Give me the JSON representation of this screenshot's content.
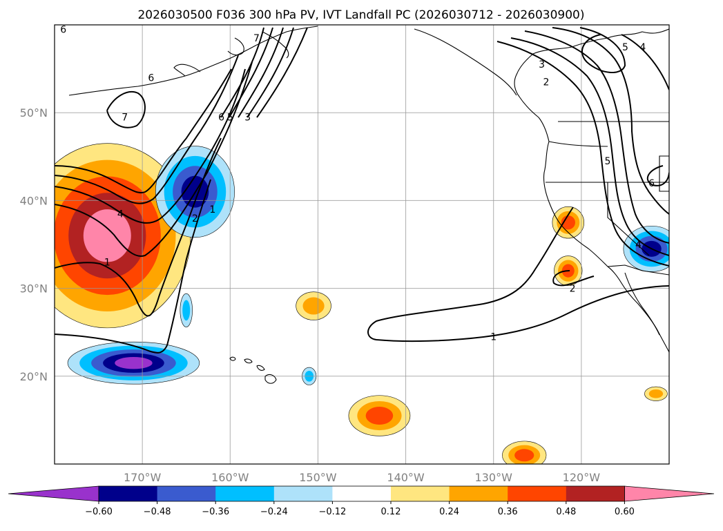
{
  "title": "2026030500 F036 300 hPa PV, IVT Landfall PC (2026030712 - 2026030900)",
  "chart_data": {
    "type": "contourf_map",
    "title": "2026030500 F036 300 hPa PV, IVT Landfall PC (2026030712 - 2026030900)",
    "projection": "PlateCarree",
    "lon_range": [
      -180,
      -110
    ],
    "lat_range": [
      10,
      60
    ],
    "lon_ticks": [
      -170,
      -160,
      -150,
      -140,
      -130,
      -120
    ],
    "lon_tick_labels": [
      "170°W",
      "160°W",
      "150°W",
      "140°W",
      "130°W",
      "120°W"
    ],
    "lat_ticks": [
      20,
      30,
      40,
      50
    ],
    "lat_tick_labels": [
      "20°N",
      "30°N",
      "40°N",
      "50°N"
    ],
    "gridlines": true,
    "colorbar": {
      "orientation": "horizontal",
      "extend": "both",
      "levels": [
        -0.6,
        -0.48,
        -0.36,
        -0.24,
        -0.12,
        0.12,
        0.24,
        0.36,
        0.48,
        0.6
      ],
      "tick_labels": [
        "−0.60",
        "−0.48",
        "−0.36",
        "−0.24",
        "−0.12",
        "0.12",
        "0.24",
        "0.36",
        "0.48",
        "0.60"
      ],
      "colors": [
        "#9932cc",
        "#00008b",
        "#3a5bcf",
        "#00bfff",
        "#aee2fa",
        "#ffffff",
        "#ffe680",
        "#ffa500",
        "#ff4500",
        "#b22222",
        "#ff85a9"
      ]
    },
    "filled_regions": [
      {
        "sign": "positive",
        "center_lon": -174,
        "center_lat": 36,
        "max_level": 0.6
      },
      {
        "sign": "negative",
        "center_lon": -164,
        "center_lat": 41,
        "min_level": -0.48
      },
      {
        "sign": "negative",
        "center_lon": -171,
        "center_lat": 21.5,
        "min_level": -0.6
      },
      {
        "sign": "negative",
        "center_lon": -112,
        "center_lat": 34.5,
        "min_level": -0.48
      },
      {
        "sign": "positive",
        "center_lon": -121.5,
        "center_lat": 37.5,
        "max_level": 0.36
      },
      {
        "sign": "positive",
        "center_lon": -121.5,
        "center_lat": 32,
        "max_level": 0.36
      },
      {
        "sign": "positive",
        "center_lon": -150.5,
        "center_lat": 28,
        "max_level": 0.24
      },
      {
        "sign": "positive",
        "center_lon": -143,
        "center_lat": 15.5,
        "max_level": 0.36
      },
      {
        "sign": "positive",
        "center_lon": -126.5,
        "center_lat": 11,
        "max_level": 0.36
      },
      {
        "sign": "positive",
        "center_lon": -111.5,
        "center_lat": 18,
        "max_level": 0.24
      },
      {
        "sign": "negative",
        "center_lon": -165,
        "center_lat": 27.5,
        "min_level": -0.24
      },
      {
        "sign": "negative",
        "center_lon": -151,
        "center_lat": 20,
        "min_level": -0.24
      }
    ],
    "contour_field": "300 hPa PV",
    "contour_levels": [
      1,
      2,
      3,
      4,
      5,
      6,
      7
    ],
    "contour_labels": [
      {
        "text": "1",
        "lon": -174,
        "lat": 33
      },
      {
        "text": "4",
        "lon": -172.5,
        "lat": 38.5
      },
      {
        "text": "2",
        "lon": -164,
        "lat": 38
      },
      {
        "text": "1",
        "lon": -162,
        "lat": 39
      },
      {
        "text": "6",
        "lon": -161,
        "lat": 49.5
      },
      {
        "text": "5",
        "lon": -160,
        "lat": 49.5
      },
      {
        "text": "3",
        "lon": -158,
        "lat": 49.5
      },
      {
        "text": "7",
        "lon": -172,
        "lat": 49.5
      },
      {
        "text": "7",
        "lon": -157,
        "lat": 58.5
      },
      {
        "text": "6",
        "lon": -179,
        "lat": 59.5
      },
      {
        "text": "6",
        "lon": -169,
        "lat": 54
      },
      {
        "text": "1",
        "lon": -130,
        "lat": 24.5
      },
      {
        "text": "2",
        "lon": -121,
        "lat": 30
      },
      {
        "text": "3",
        "lon": -124.5,
        "lat": 55.5
      },
      {
        "text": "2",
        "lon": -124,
        "lat": 53.5
      },
      {
        "text": "5",
        "lon": -115,
        "lat": 57.5
      },
      {
        "text": "4",
        "lon": -113,
        "lat": 57.5
      },
      {
        "text": "5",
        "lon": -117,
        "lat": 44.5
      },
      {
        "text": "6",
        "lon": -112,
        "lat": 42
      },
      {
        "text": "4",
        "lon": -113.5,
        "lat": 35
      }
    ]
  }
}
